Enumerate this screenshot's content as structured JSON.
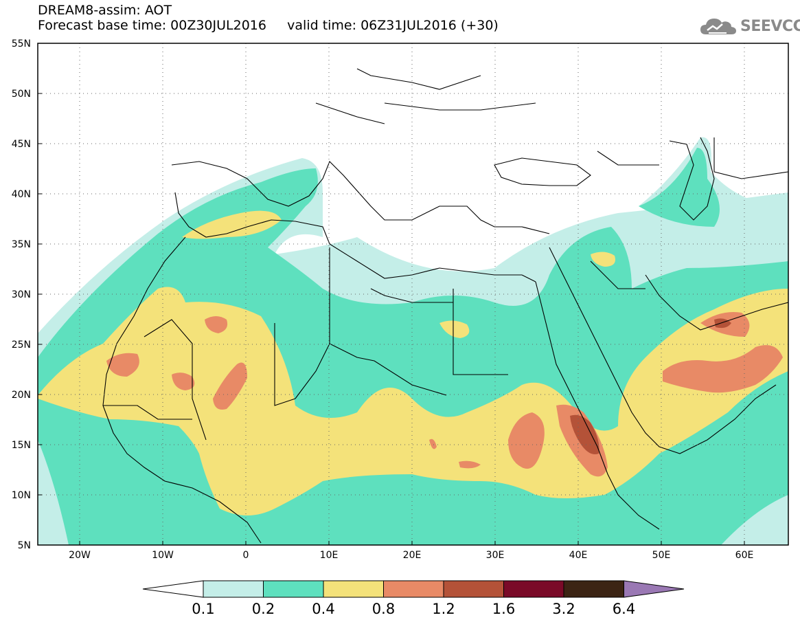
{
  "header": {
    "line1": "DREAM8-assim: AOT",
    "line2": "Forecast base time: 00Z30JUL2016     valid time: 06Z31JUL2016 (+30)"
  },
  "logo": {
    "text": "SEEVCCC",
    "icon": "cloud-logo-icon"
  },
  "map": {
    "lon_range": [
      -25,
      65
    ],
    "lat_range": [
      5,
      55
    ],
    "lat_ticks": [
      "55N",
      "50N",
      "45N",
      "40N",
      "35N",
      "30N",
      "25N",
      "20N",
      "15N",
      "10N",
      "5N"
    ],
    "lon_ticks": [
      "20W",
      "10W",
      "0",
      "10E",
      "20E",
      "30E",
      "40E",
      "50E",
      "60E"
    ],
    "grid": "dotted"
  },
  "colorbar": {
    "levels": [
      "0.1",
      "0.2",
      "0.4",
      "0.8",
      "1.2",
      "1.6",
      "3.2",
      "6.4"
    ],
    "colors": {
      "c01": "#c4eee8",
      "c02": "#5ee0be",
      "c04": "#f4e27a",
      "c08": "#e88a66",
      "c12": "#b45238",
      "c16": "#7a0a28",
      "c32": "#3c2414",
      "c64": "#9a78b4"
    }
  }
}
